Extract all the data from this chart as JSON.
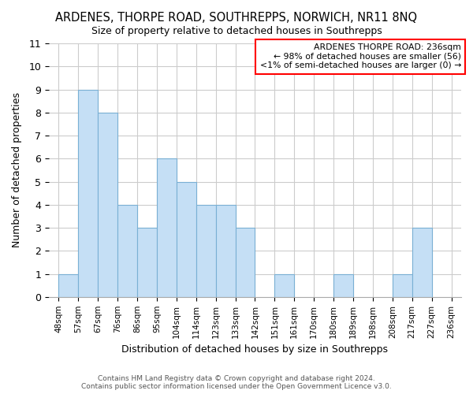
{
  "title": "ARDENES, THORPE ROAD, SOUTHREPPS, NORWICH, NR11 8NQ",
  "subtitle": "Size of property relative to detached houses in Southrepps",
  "xlabel": "Distribution of detached houses by size in Southrepps",
  "ylabel": "Number of detached properties",
  "footer_line1": "Contains HM Land Registry data © Crown copyright and database right 2024.",
  "footer_line2": "Contains public sector information licensed under the Open Government Licence v3.0.",
  "bin_edges": [
    "48sqm",
    "57sqm",
    "67sqm",
    "76sqm",
    "86sqm",
    "95sqm",
    "104sqm",
    "114sqm",
    "123sqm",
    "133sqm",
    "142sqm",
    "151sqm",
    "161sqm",
    "170sqm",
    "180sqm",
    "189sqm",
    "198sqm",
    "208sqm",
    "217sqm",
    "227sqm",
    "236sqm"
  ],
  "bin_values": [
    1,
    9,
    8,
    4,
    3,
    6,
    5,
    4,
    4,
    3,
    0,
    1,
    0,
    0,
    1,
    0,
    0,
    1,
    3,
    0
  ],
  "bar_color": "#c5dff5",
  "bar_edge_color": "#7ab0d4",
  "ylim": [
    0,
    11
  ],
  "yticks": [
    0,
    1,
    2,
    3,
    4,
    5,
    6,
    7,
    8,
    9,
    10,
    11
  ],
  "annotation_title": "ARDENES THORPE ROAD: 236sqm",
  "annotation_line1": "← 98% of detached houses are smaller (56)",
  "annotation_line2": "<1% of semi-detached houses are larger (0) →",
  "grid_color": "#cccccc",
  "background_color": "#ffffff"
}
